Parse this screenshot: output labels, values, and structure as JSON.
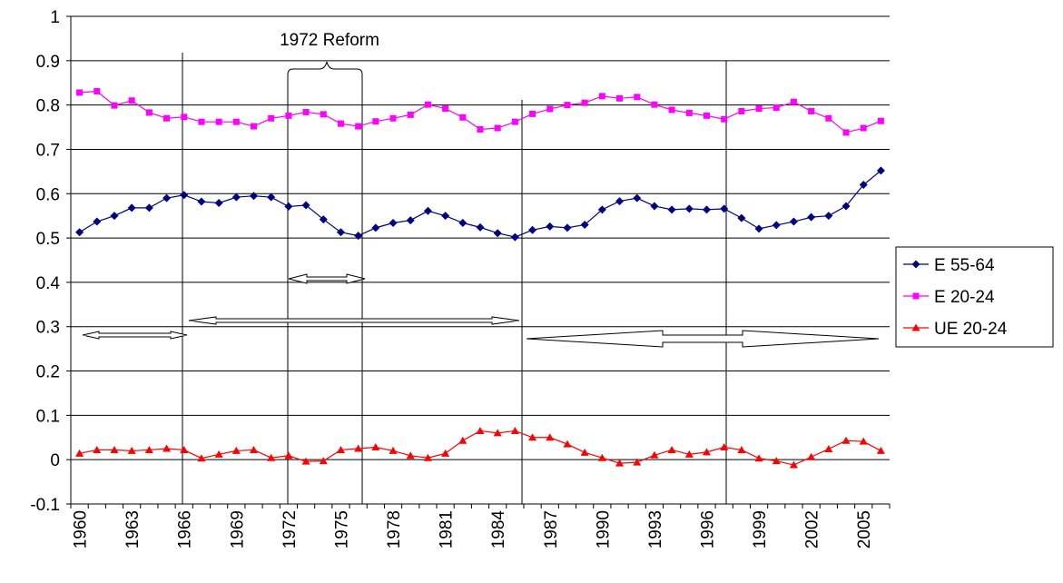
{
  "chart_data": {
    "type": "line",
    "categories": [
      "1960",
      null,
      null,
      "1963",
      null,
      null,
      "1966",
      null,
      null,
      "1969",
      null,
      null,
      "1972",
      null,
      null,
      "1975",
      null,
      null,
      "1978",
      null,
      null,
      "1981",
      null,
      null,
      "1984",
      null,
      null,
      "1987",
      null,
      null,
      "1990",
      null,
      null,
      "1993",
      null,
      null,
      "1996",
      null,
      null,
      "1999",
      null,
      null,
      "2002",
      null,
      null,
      "2005",
      null
    ],
    "series": [
      {
        "name": "E 55-64",
        "color": "#000080",
        "marker": "diamond",
        "values": [
          0.513,
          0.537,
          0.55,
          0.568,
          0.568,
          0.59,
          0.597,
          0.582,
          0.579,
          0.592,
          0.595,
          0.592,
          0.571,
          0.574,
          0.542,
          0.513,
          0.505,
          0.523,
          0.534,
          0.54,
          0.561,
          0.55,
          0.534,
          0.524,
          0.511,
          0.502,
          0.518,
          0.526,
          0.523,
          0.53,
          0.564,
          0.583,
          0.59,
          0.572,
          0.564,
          0.566,
          0.564,
          0.566,
          0.545,
          0.521,
          0.529,
          0.537,
          0.547,
          0.55,
          0.572,
          0.62,
          0.652
        ]
      },
      {
        "name": "E 20-24",
        "color": "#ff00ff",
        "marker": "square",
        "values": [
          0.828,
          0.831,
          0.799,
          0.81,
          0.783,
          0.77,
          0.773,
          0.762,
          0.762,
          0.762,
          0.752,
          0.77,
          0.776,
          0.784,
          0.779,
          0.758,
          0.752,
          0.763,
          0.77,
          0.778,
          0.801,
          0.792,
          0.772,
          0.745,
          0.748,
          0.762,
          0.78,
          0.791,
          0.8,
          0.805,
          0.82,
          0.815,
          0.818,
          0.801,
          0.789,
          0.782,
          0.776,
          0.768,
          0.786,
          0.792,
          0.794,
          0.807,
          0.786,
          0.77,
          0.738,
          0.748,
          0.764
        ]
      },
      {
        "name": "UE 20-24",
        "color": "#ff0000",
        "marker": "triangle",
        "values": [
          0.014,
          0.022,
          0.022,
          0.02,
          0.022,
          0.025,
          0.022,
          0.003,
          0.012,
          0.02,
          0.022,
          0.004,
          0.009,
          -0.004,
          -0.003,
          0.022,
          0.025,
          0.028,
          0.02,
          0.009,
          0.004,
          0.014,
          0.043,
          0.065,
          0.06,
          0.065,
          0.05,
          0.05,
          0.035,
          0.016,
          0.004,
          -0.008,
          -0.006,
          0.01,
          0.022,
          0.012,
          0.017,
          0.028,
          0.022,
          0.003,
          -0.003,
          -0.012,
          0.006,
          0.024,
          0.043,
          0.041,
          0.02
        ]
      }
    ],
    "ylim": [
      -0.1,
      1
    ],
    "yticks": [
      -0.1,
      0,
      0.1,
      0.2,
      0.3,
      0.4,
      0.5,
      0.6,
      0.7,
      0.8,
      0.9,
      1
    ],
    "grid": true,
    "legend": "right",
    "annotations": [
      "1972 Reform"
    ]
  }
}
